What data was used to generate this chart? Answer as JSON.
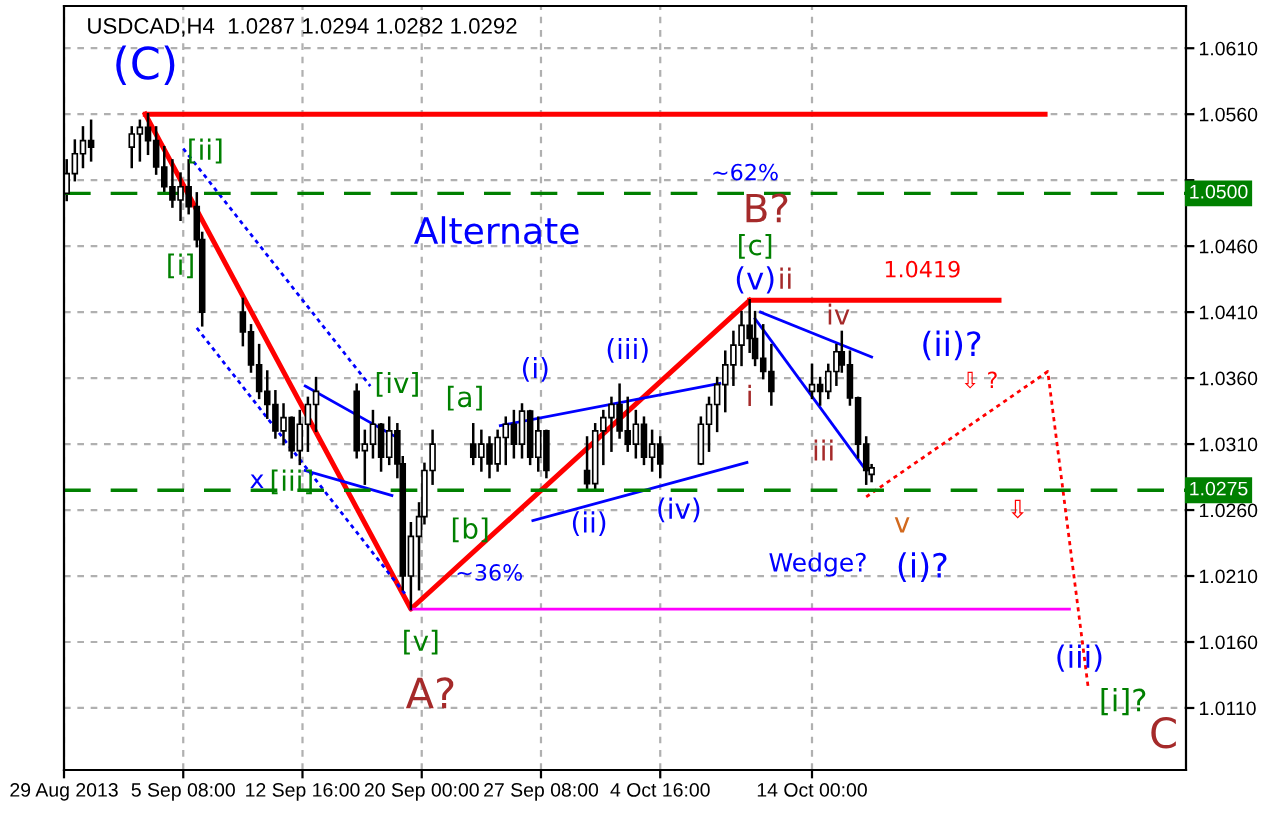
{
  "chart_data": {
    "type": "candlestick",
    "title": "USDCAD,H4  1.0287 1.0294 1.0282 1.0292",
    "x": [
      "2013-08-29T04:00",
      "2013-08-29T16:00",
      "2013-08-30T04:00",
      "2013-08-30T16:00",
      "2013-09-02T04:00",
      "2013-09-02T16:00",
      "2013-09-03T04:00",
      "2013-09-03T16:00",
      "2013-09-04T04:00",
      "2013-09-04T16:00",
      "2013-09-05T04:00",
      "2013-09-05T16:00",
      "2013-09-06T04:00",
      "2013-09-06T12:00",
      "2013-09-09T00:00",
      "2013-09-09T12:00",
      "2013-09-10T00:00",
      "2013-09-10T12:00",
      "2013-09-11T00:00",
      "2013-09-11T12:00",
      "2013-09-12T00:00",
      "2013-09-12T12:00",
      "2013-09-13T00:00",
      "2013-09-13T12:00",
      "2013-09-16T00:00",
      "2013-09-16T12:00",
      "2013-09-17T00:00",
      "2013-09-17T12:00",
      "2013-09-18T00:00",
      "2013-09-18T12:00",
      "2013-09-18T20:00",
      "2013-09-19T08:00",
      "2013-09-19T20:00",
      "2013-09-20T04:00",
      "2013-09-20T16:00",
      "2013-09-23T04:00",
      "2013-09-23T16:00",
      "2013-09-24T04:00",
      "2013-09-24T16:00",
      "2013-09-25T04:00",
      "2013-09-25T16:00",
      "2013-09-26T04:00",
      "2013-09-26T16:00",
      "2013-09-27T04:00",
      "2013-09-27T16:00",
      "2013-09-30T04:00",
      "2013-09-30T16:00",
      "2013-10-01T04:00",
      "2013-10-01T16:00",
      "2013-10-02T04:00",
      "2013-10-02T16:00",
      "2013-10-03T04:00",
      "2013-10-03T16:00",
      "2013-10-04T04:00",
      "2013-10-04T16:00",
      "2013-10-07T04:00",
      "2013-10-07T16:00",
      "2013-10-08T04:00",
      "2013-10-08T16:00",
      "2013-10-09T04:00",
      "2013-10-09T16:00",
      "2013-10-10T04:00",
      "2013-10-10T12:00",
      "2013-10-11T00:00",
      "2013-10-11T12:00",
      "2013-10-14T00:00",
      "2013-10-14T12:00",
      "2013-10-15T00:00",
      "2013-10-15T12:00",
      "2013-10-15T20:00",
      "2013-10-16T08:00",
      "2013-10-16T20:00",
      "2013-10-17T08:00",
      "2013-10-17T16:00"
    ],
    "ohlc": [
      [
        1.05,
        1.0525,
        1.0495,
        1.0515
      ],
      [
        1.0515,
        1.054,
        1.051,
        1.053
      ],
      [
        1.053,
        1.055,
        1.052,
        1.054
      ],
      [
        1.054,
        1.0555,
        1.0525,
        1.0535
      ],
      [
        1.0535,
        1.055,
        1.052,
        1.0545
      ],
      [
        1.0545,
        1.0555,
        1.0525,
        1.055
      ],
      [
        1.055,
        1.056,
        1.053,
        1.054
      ],
      [
        1.054,
        1.055,
        1.0515,
        1.052
      ],
      [
        1.052,
        1.0535,
        1.05,
        1.0505
      ],
      [
        1.0505,
        1.0525,
        1.049,
        1.0495
      ],
      [
        1.0495,
        1.0515,
        1.048,
        1.0505
      ],
      [
        1.0505,
        1.0525,
        1.0485,
        1.049
      ],
      [
        1.049,
        1.05,
        1.046,
        1.0465
      ],
      [
        1.0465,
        1.047,
        1.04,
        1.041
      ],
      [
        1.041,
        1.042,
        1.0385,
        1.0395
      ],
      [
        1.0395,
        1.04,
        1.0365,
        1.037
      ],
      [
        1.037,
        1.0385,
        1.0345,
        1.035
      ],
      [
        1.035,
        1.0365,
        1.033,
        1.034
      ],
      [
        1.034,
        1.035,
        1.0315,
        1.032
      ],
      [
        1.032,
        1.034,
        1.031,
        1.033
      ],
      [
        1.033,
        1.033,
        1.03,
        1.0305
      ],
      [
        1.0305,
        1.0335,
        1.0295,
        1.0325
      ],
      [
        1.0325,
        1.0345,
        1.0305,
        1.034
      ],
      [
        1.034,
        1.036,
        1.032,
        1.035
      ],
      [
        1.035,
        1.0355,
        1.03,
        1.0305
      ],
      [
        1.0305,
        1.032,
        1.028,
        1.031
      ],
      [
        1.031,
        1.0335,
        1.03,
        1.0325
      ],
      [
        1.0325,
        1.0325,
        1.029,
        1.03
      ],
      [
        1.03,
        1.033,
        1.0295,
        1.032
      ],
      [
        1.032,
        1.0325,
        1.0285,
        1.0295
      ],
      [
        1.0295,
        1.03,
        1.02,
        1.021
      ],
      [
        1.021,
        1.025,
        1.0185,
        1.024
      ],
      [
        1.024,
        1.0265,
        1.02,
        1.0255
      ],
      [
        1.0255,
        1.0295,
        1.025,
        1.029
      ],
      [
        1.029,
        1.032,
        1.028,
        1.031
      ],
      [
        1.031,
        1.0325,
        1.0295,
        1.03
      ],
      [
        1.03,
        1.032,
        1.029,
        1.031
      ],
      [
        1.031,
        1.0315,
        1.0285,
        1.0295
      ],
      [
        1.0295,
        1.032,
        1.029,
        1.0315
      ],
      [
        1.0315,
        1.033,
        1.0295,
        1.0325
      ],
      [
        1.0325,
        1.0335,
        1.03,
        1.031
      ],
      [
        1.031,
        1.034,
        1.03,
        1.0335
      ],
      [
        1.0335,
        1.0335,
        1.0295,
        1.03
      ],
      [
        1.03,
        1.033,
        1.029,
        1.032
      ],
      [
        1.032,
        1.032,
        1.0285,
        1.029
      ],
      [
        1.029,
        1.0315,
        1.0275,
        1.028
      ],
      [
        1.028,
        1.0325,
        1.0275,
        1.032
      ],
      [
        1.032,
        1.0335,
        1.0295,
        1.033
      ],
      [
        1.033,
        1.0345,
        1.0305,
        1.034
      ],
      [
        1.034,
        1.0355,
        1.0315,
        1.032
      ],
      [
        1.032,
        1.0345,
        1.0305,
        1.031
      ],
      [
        1.031,
        1.0335,
        1.03,
        1.0325
      ],
      [
        1.0325,
        1.033,
        1.0295,
        1.03
      ],
      [
        1.03,
        1.032,
        1.029,
        1.031
      ],
      [
        1.031,
        1.0315,
        1.0285,
        1.0295
      ],
      [
        1.0295,
        1.033,
        1.0295,
        1.0325
      ],
      [
        1.0325,
        1.0345,
        1.0305,
        1.034
      ],
      [
        1.034,
        1.036,
        1.032,
        1.0355
      ],
      [
        1.0355,
        1.038,
        1.0335,
        1.037
      ],
      [
        1.037,
        1.0395,
        1.0355,
        1.0385
      ],
      [
        1.0385,
        1.041,
        1.037,
        1.04
      ],
      [
        1.04,
        1.0419,
        1.038,
        1.039
      ],
      [
        1.039,
        1.041,
        1.037,
        1.0375
      ],
      [
        1.0375,
        1.04,
        1.036,
        1.0365
      ],
      [
        1.0365,
        1.0385,
        1.034,
        1.035
      ],
      [
        1.035,
        1.037,
        1.0345,
        1.0355
      ],
      [
        1.0355,
        1.036,
        1.034,
        1.035
      ],
      [
        1.035,
        1.037,
        1.0345,
        1.0365
      ],
      [
        1.0365,
        1.0385,
        1.0355,
        1.038
      ],
      [
        1.038,
        1.0395,
        1.0365,
        1.037
      ],
      [
        1.037,
        1.038,
        1.034,
        1.0345
      ],
      [
        1.0345,
        1.0345,
        1.03,
        1.031
      ],
      [
        1.031,
        1.0315,
        1.028,
        1.029
      ],
      [
        1.0287,
        1.0294,
        1.0282,
        1.0292
      ]
    ],
    "series": [
      {
        "type": "line",
        "color": "#ff0000",
        "x": [
          "2013-09-03T00:00",
          "2013-09-19T08:00",
          "2013-10-10T04:00"
        ],
        "values": [
          1.056,
          1.0185,
          1.0419
        ]
      },
      {
        "type": "line",
        "color": "#ff0000",
        "x": [
          "2013-09-03T00:00",
          "2013-10-28T08:00"
        ],
        "values": [
          1.056,
          1.056
        ]
      },
      {
        "type": "line",
        "color": "#ff0000",
        "x": [
          "2013-10-10T04:00",
          "2013-10-25T12:00"
        ],
        "values": [
          1.0419,
          1.0419
        ]
      },
      {
        "type": "line",
        "color": "#ff00ff",
        "x": [
          "2013-09-19T08:00",
          "2013-10-29T20:00"
        ],
        "values": [
          1.0185,
          1.0185
        ]
      },
      {
        "type": "line",
        "color": "#0000ff",
        "line_style": "dotted",
        "x": [
          "2013-09-05T08:00",
          "2013-09-16T20:00"
        ],
        "values": [
          1.0534,
          1.0354
        ]
      },
      {
        "type": "line",
        "color": "#0000ff",
        "line_style": "dotted",
        "x": [
          "2013-09-06T04:00",
          "2013-09-19T00:00"
        ],
        "values": [
          1.0398,
          1.0196
        ]
      },
      {
        "type": "line",
        "color": "#0000ff",
        "x": [
          "2013-09-12T20:00",
          "2013-09-18T08:00"
        ],
        "values": [
          1.0354,
          1.0316
        ]
      },
      {
        "type": "line",
        "color": "#0000ff",
        "x": [
          "2013-09-12T20:00",
          "2013-09-18T04:00"
        ],
        "values": [
          1.029,
          1.0271
        ]
      },
      {
        "type": "line",
        "color": "#0000ff",
        "x": [
          "2013-09-24T20:00",
          "2013-10-08T08:00"
        ],
        "values": [
          1.0324,
          1.0356
        ]
      },
      {
        "type": "line",
        "color": "#0000ff",
        "x": [
          "2013-09-26T20:00",
          "2013-10-10T00:00"
        ],
        "values": [
          1.0252,
          1.0296
        ]
      },
      {
        "type": "line",
        "color": "#0000ff",
        "x": [
          "2013-10-10T20:00",
          "2013-10-17T16:00"
        ],
        "values": [
          1.041,
          1.0376
        ]
      },
      {
        "type": "line",
        "color": "#0000ff",
        "x": [
          "2013-10-10T12:00",
          "2013-10-17T08:00"
        ],
        "values": [
          1.0405,
          1.029
        ]
      },
      {
        "type": "line",
        "color": "#ff0000",
        "line_style": "dotted",
        "x": [
          "2013-10-17T08:00",
          "2013-10-28T12:00",
          "2013-10-31T00:00"
        ],
        "values": [
          1.027,
          1.0365,
          1.0124
        ]
      }
    ],
    "ref_lines": [
      {
        "axis": "y",
        "value": 1.05,
        "label": "1.0500",
        "color": "#008000",
        "line_style": "dashed"
      },
      {
        "axis": "y",
        "value": 1.0275,
        "label": "1.0275",
        "color": "#008000",
        "line_style": "dashed"
      }
    ],
    "annotations": [
      {
        "text": "(C)",
        "x": "2013-09-03T00:00",
        "y": 1.056
      },
      {
        "text": "[ii]",
        "x": "2013-09-05T16:00",
        "y": 1.0525
      },
      {
        "text": "[i]",
        "x": "2013-09-05T04:00",
        "y": 1.048
      },
      "Alternate",
      "~62%",
      "B?",
      "[c]",
      "(v)",
      "ii",
      "1.0419",
      "iv",
      "(ii)?",
      "⇩ ?",
      {
        "text": "i",
        "x": "2013-10-10T04:00",
        "y": 1.037
      },
      "iii",
      "v",
      "(i)?",
      "Wedge?",
      "⇩",
      "(iii)",
      "[i]?",
      "C",
      "(i)",
      {
        "text": "(iii)",
        "x": "2013-10-02T16:00",
        "y": 1.0355
      },
      "(ii)",
      "(iv)",
      {
        "text": "[iv]",
        "x": "2013-09-18T12:00",
        "y": 1.0325
      },
      {
        "text": "[a]",
        "x": "2013-09-23T04:00",
        "y": 1.0325
      },
      "[b]",
      "~36%",
      "x",
      {
        "text": "[iii]",
        "x": "2013-09-11T12:00",
        "y": 1.031
      },
      "[v]",
      "A?"
    ],
    "color": "#000000",
    "xlim": [
      "2013-08-29T00:00",
      "2013-11-06T00:00"
    ],
    "xticks": [
      {
        "value": "2013-08-29",
        "label": "29 Aug 2013"
      },
      {
        "value": "2013-09-05T08:00",
        "label": "5 Sep 08:00"
      },
      {
        "value": "2013-09-12T16:00",
        "label": "12 Sep 16:00"
      },
      {
        "value": "2013-09-20T00:00",
        "label": "20 Sep 00:00"
      },
      {
        "value": "2013-09-27T08:00",
        "label": "27 Sep 08:00"
      },
      {
        "value": "2013-10-04T16:00",
        "label": "4 Oct 16:00"
      },
      {
        "value": "2013-10-14T00:00",
        "label": "14 Oct 00:00"
      }
    ],
    "ylim": [
      1.0063,
      1.0642
    ],
    "yticks": [
      {
        "value": 1.011,
        "label": "1.0110"
      },
      {
        "value": 1.016,
        "label": "1.0160"
      },
      {
        "value": 1.021,
        "label": "1.0210"
      },
      {
        "value": 1.026,
        "label": "1.0260"
      },
      {
        "value": 1.031,
        "label": "1.0310"
      },
      {
        "value": 1.036,
        "label": "1.0360"
      },
      {
        "value": 1.041,
        "label": "1.0410"
      },
      {
        "value": 1.046,
        "label": "1.0460"
      },
      {
        "value": 1.051,
        "label": null
      },
      {
        "value": 1.056,
        "label": "1.0560"
      },
      {
        "value": 1.061,
        "label": "1.0610"
      }
    ],
    "grid": true
  }
}
